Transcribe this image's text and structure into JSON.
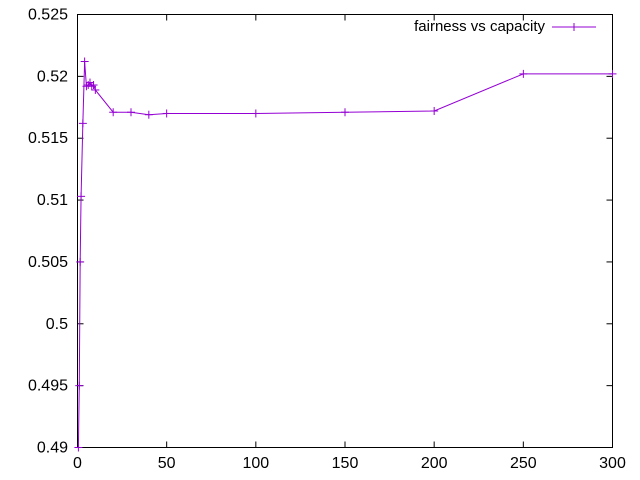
{
  "chart_data": {
    "type": "line",
    "title": "",
    "xlabel": "",
    "ylabel": "",
    "xlim": [
      0,
      300
    ],
    "ylim": [
      0.49,
      0.525
    ],
    "xticks": [
      0,
      50,
      100,
      150,
      200,
      250,
      300
    ],
    "yticks": [
      0.49,
      0.495,
      0.5,
      0.505,
      0.51,
      0.515,
      0.52,
      0.525
    ],
    "xtick_labels": [
      "0",
      "50",
      "100",
      "150",
      "200",
      "250",
      "300"
    ],
    "ytick_labels": [
      "0.49",
      "0.495",
      "0.5",
      "0.505",
      "0.51",
      "0.515",
      "0.52",
      "0.525"
    ],
    "grid": false,
    "legend_position": "top-right",
    "series": [
      {
        "name": "fairness vs capacity",
        "color": "#9400d3",
        "marker": "plus",
        "x": [
          0.5,
          1,
          1.5,
          2,
          3,
          4,
          5,
          6,
          7,
          8,
          9,
          10,
          20,
          30,
          40,
          50,
          100,
          150,
          200,
          250,
          300
        ],
        "y": [
          0.49,
          0.495,
          0.505,
          0.5103,
          0.5162,
          0.5212,
          0.5192,
          0.5193,
          0.5195,
          0.5192,
          0.5193,
          0.5189,
          0.5171,
          0.5171,
          0.5169,
          0.517,
          0.517,
          0.5171,
          0.5172,
          0.5202,
          0.5202
        ]
      }
    ]
  }
}
